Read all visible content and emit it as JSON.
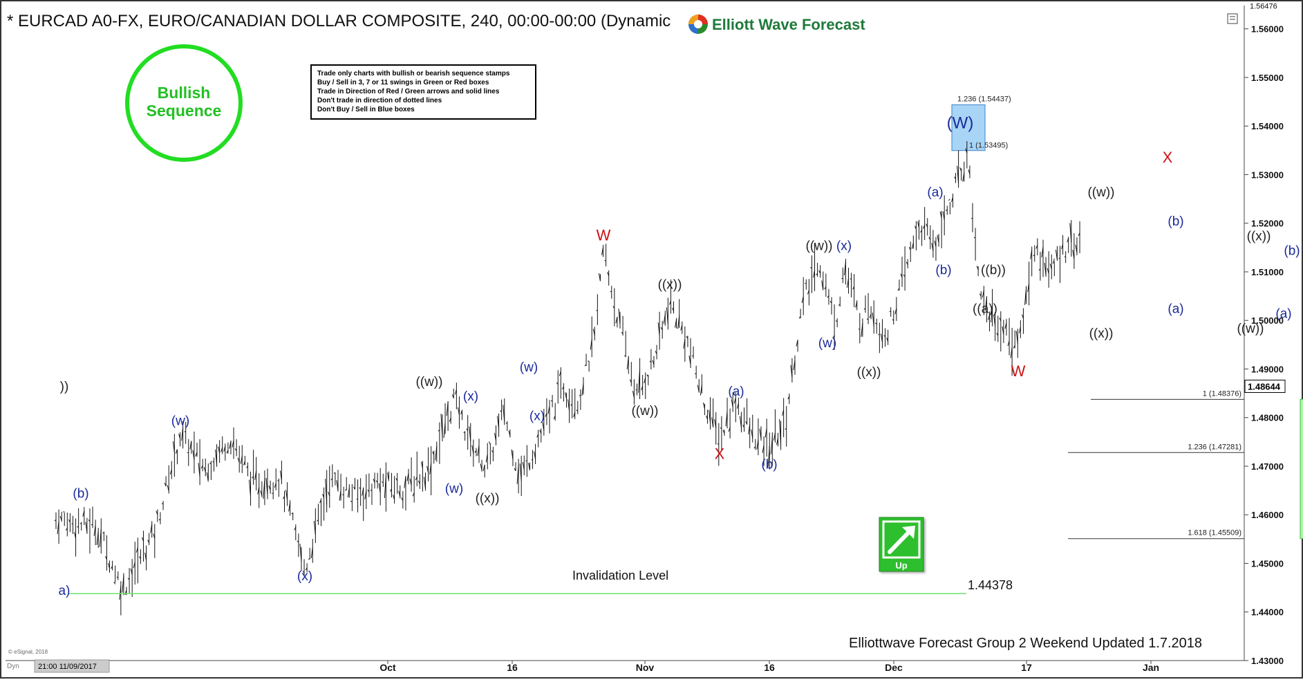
{
  "header": {
    "title": "* EURCAD A0-FX, EURO/CANADIAN DOLLAR COMPOSITE, 240, 00:00-00:00 (Dynamic",
    "brand": "Elliott Wave Forecast"
  },
  "badge": {
    "line1": "Bullish",
    "line2": "Sequence"
  },
  "rules": [
    "Trade only charts with bullish or bearish sequence stamps",
    "Buy / Sell in 3, 7 or 11 swings in Green or Red boxes",
    "Trade in Direction of Red / Green arrows and solid lines",
    "Don't trade in direction of dotted lines",
    "Don't Buy / Sell in Blue boxes"
  ],
  "up_stamp": {
    "label": "Up"
  },
  "footer": {
    "note": "Elliottwave Forecast Group 2 Weekend Updated 1.7.2018",
    "copyright": "© eSignal, 2018",
    "mode": "Dyn",
    "cursor_time": "21:00 11/09/2017"
  },
  "invalidation": {
    "label": "Invalidation Level",
    "value": "1.44378",
    "price": 1.44378
  },
  "chart_data": {
    "type": "bar",
    "title": "* EURCAD A0-FX, EURO/CANADIAN DOLLAR COMPOSITE, 240, 00:00-00:00 (Dynamic",
    "xlabel": "",
    "ylabel": "",
    "ylim": [
      1.43,
      1.5648
    ],
    "y_ticks": [
      "1.56000",
      "1.55000",
      "1.54000",
      "1.53000",
      "1.52000",
      "1.51000",
      "1.50000",
      "1.49000",
      "1.48000",
      "1.47000",
      "1.46000",
      "1.45000",
      "1.44000",
      "1.43000"
    ],
    "y_top_label": "1.56476",
    "x_ticks": [
      "Oct",
      "16",
      "Nov",
      "16",
      "Dec",
      "17",
      "Jan"
    ],
    "x_range_days": [
      -30,
      95
    ],
    "x_tick_days": [
      8,
      23,
      39,
      54,
      69,
      85,
      100
    ],
    "last_price": "1.48644",
    "last_price_value": 1.48644,
    "grid": false,
    "price_path": [
      [
        -32,
        1.459
      ],
      [
        -27,
        1.4575
      ],
      [
        -24,
        1.4445
      ],
      [
        -20,
        1.457
      ],
      [
        -17,
        1.4765
      ],
      [
        -14,
        1.4695
      ],
      [
        -11,
        1.476
      ],
      [
        -8,
        1.466
      ],
      [
        -5,
        1.468
      ],
      [
        -2,
        1.4485
      ],
      [
        1,
        1.4675
      ],
      [
        4,
        1.464
      ],
      [
        7,
        1.4665
      ],
      [
        10,
        1.4655
      ],
      [
        13,
        1.4695
      ],
      [
        16,
        1.484
      ],
      [
        18,
        1.475
      ],
      [
        20,
        1.4695
      ],
      [
        22,
        1.4815
      ],
      [
        24,
        1.4675
      ],
      [
        27,
        1.4785
      ],
      [
        29,
        1.4865
      ],
      [
        31,
        1.4835
      ],
      [
        33,
        1.497
      ],
      [
        34,
        1.5145
      ],
      [
        36,
        1.4985
      ],
      [
        38,
        1.4845
      ],
      [
        40,
        1.4915
      ],
      [
        42,
        1.5035
      ],
      [
        44,
        1.4965
      ],
      [
        46,
        1.484
      ],
      [
        48,
        1.4755
      ],
      [
        50,
        1.4835
      ],
      [
        52,
        1.476
      ],
      [
        54,
        1.4735
      ],
      [
        56,
        1.4795
      ],
      [
        58,
        1.5035
      ],
      [
        60,
        1.5125
      ],
      [
        62,
        1.4985
      ],
      [
        63,
        1.5115
      ],
      [
        65,
        1.4995
      ],
      [
        66,
        1.5035
      ],
      [
        68,
        1.4965
      ],
      [
        70,
        1.5075
      ],
      [
        72,
        1.5195
      ],
      [
        74,
        1.5155
      ],
      [
        76,
        1.5255
      ],
      [
        77,
        1.5305
      ],
      [
        78,
        1.5345
      ],
      [
        79,
        1.5115
      ],
      [
        80,
        1.5025
      ],
      [
        82,
        1.4985
      ],
      [
        84,
        1.4945
      ],
      [
        86,
        1.5155
      ],
      [
        88,
        1.5095
      ],
      [
        90,
        1.5165
      ],
      [
        92,
        1.5155
      ],
      [
        94,
        1.5225
      ],
      [
        96,
        1.5075
      ],
      [
        98,
        1.5165
      ],
      [
        100,
        1.5215
      ],
      [
        101,
        1.5295
      ],
      [
        102,
        1.5265
      ],
      [
        103,
        1.5195
      ],
      [
        104,
        1.5155
      ],
      [
        106,
        1.5055
      ],
      [
        108,
        1.5095
      ],
      [
        110,
        1.5025
      ],
      [
        112,
        1.5055
      ],
      [
        114,
        1.5085
      ],
      [
        116,
        1.5105
      ],
      [
        118,
        1.5085
      ],
      [
        120,
        1.5095
      ],
      [
        121,
        1.5075
      ],
      [
        122,
        1.4985
      ],
      [
        123,
        1.4864
      ]
    ],
    "waves": [
      {
        "text": "(b)",
        "day": -29,
        "price": 1.4635,
        "color": "#1a2a9a"
      },
      {
        "text": "(w)",
        "day": -17,
        "price": 1.4785,
        "color": "#1a2a9a"
      },
      {
        "text": "(x)",
        "day": -2,
        "price": 1.4465,
        "color": "#1a2a9a"
      },
      {
        "text": "((w))",
        "day": 13,
        "price": 1.4865,
        "color": "#222222"
      },
      {
        "text": "(x)",
        "day": 18,
        "price": 1.4835,
        "color": "#1a2a9a"
      },
      {
        "text": "(w)",
        "day": 16,
        "price": 1.4645,
        "color": "#1a2a9a"
      },
      {
        "text": "((x))",
        "day": 20,
        "price": 1.4625,
        "color": "#222222"
      },
      {
        "text": "(w)",
        "day": 25,
        "price": 1.4895,
        "color": "#1a2a9a"
      },
      {
        "text": "(x)",
        "day": 26,
        "price": 1.4795,
        "color": "#1a2a9a"
      },
      {
        "text": "W",
        "day": 34,
        "price": 1.5165,
        "color": "#cc1111"
      },
      {
        "text": "((x))",
        "day": 42,
        "price": 1.5065,
        "color": "#222222"
      },
      {
        "text": "((w))",
        "day": 39,
        "price": 1.4805,
        "color": "#222222"
      },
      {
        "text": "(a)",
        "day": 50,
        "price": 1.4845,
        "color": "#1a2a9a"
      },
      {
        "text": "X",
        "day": 48,
        "price": 1.4715,
        "color": "#cc1111"
      },
      {
        "text": "(b)",
        "day": 54,
        "price": 1.4695,
        "color": "#1a2a9a"
      },
      {
        "text": "((w))",
        "day": 60,
        "price": 1.5145,
        "color": "#222222"
      },
      {
        "text": "(x)",
        "day": 63,
        "price": 1.5145,
        "color": "#1a2a9a"
      },
      {
        "text": "(w)",
        "day": 61,
        "price": 1.4945,
        "color": "#1a2a9a"
      },
      {
        "text": "((x))",
        "day": 66,
        "price": 1.4885,
        "color": "#222222"
      },
      {
        "text": "(a)",
        "day": 74,
        "price": 1.5255,
        "color": "#1a2a9a"
      },
      {
        "text": "(b)",
        "day": 75,
        "price": 1.5095,
        "color": "#1a2a9a"
      },
      {
        "text": "((b))",
        "day": 81,
        "price": 1.5095,
        "color": "#222222"
      },
      {
        "text": "((a))",
        "day": 80,
        "price": 1.5015,
        "color": "#222222"
      },
      {
        "text": "W",
        "day": 84,
        "price": 1.4885,
        "color": "#cc1111"
      },
      {
        "text": "((w))",
        "day": 94,
        "price": 1.5255,
        "color": "#222222"
      },
      {
        "text": "((x))",
        "day": 94,
        "price": 1.4965,
        "color": "#222222"
      },
      {
        "text": "X",
        "day": 102,
        "price": 1.5325,
        "color": "#cc1111"
      },
      {
        "text": "(b)",
        "day": 103,
        "price": 1.5195,
        "color": "#1a2a9a"
      },
      {
        "text": "(a)",
        "day": 103,
        "price": 1.5015,
        "color": "#1a2a9a"
      },
      {
        "text": "((w))",
        "day": 112,
        "price": 1.4975,
        "color": "#222222"
      },
      {
        "text": "((x))",
        "day": 113,
        "price": 1.5165,
        "color": "#222222"
      },
      {
        "text": "(b)",
        "day": 117,
        "price": 1.5135,
        "color": "#1a2a9a"
      },
      {
        "text": "(a)",
        "day": 116,
        "price": 1.5005,
        "color": "#1a2a9a"
      },
      {
        "text": "(W)",
        "day": 77,
        "price": 1.5395,
        "color": "#1a2a9a"
      },
      {
        "text": "(X)",
        "day": 122,
        "price": 1.4775,
        "color": "#1a2a9a"
      },
      {
        "text": "))",
        "day": -31,
        "price": 1.4855,
        "color": "#222222"
      },
      {
        "text": "a)",
        "day": -31,
        "price": 1.4435,
        "color": "#1a2a9a"
      }
    ],
    "blue_box": {
      "day_from": 76,
      "day_to": 80,
      "price_from": 1.53495,
      "price_to": 1.54437,
      "top_label": "1.236 (1.54437)",
      "bottom_label": "1 (1.53495)"
    },
    "green_box": {
      "day_from": 118,
      "day_to": 128,
      "price_from": 1.45509,
      "price_to": 1.48376
    },
    "fib_levels": [
      {
        "label": "1 (1.48376)",
        "price": 1.48376
      },
      {
        "label": "1.236 (1.47281)",
        "price": 1.47281
      },
      {
        "label": "1.618 (1.45509)",
        "price": 1.45509
      }
    ],
    "projection": [
      [
        122,
        1.4815
      ],
      [
        132,
        1.5325
      ]
    ]
  }
}
